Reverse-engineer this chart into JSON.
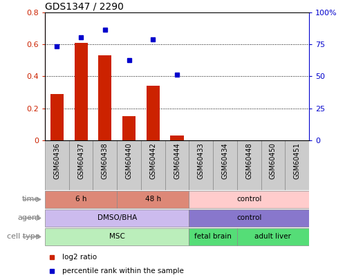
{
  "title": "GDS1347 / 2290",
  "samples": [
    "GSM60436",
    "GSM60437",
    "GSM60438",
    "GSM60440",
    "GSM60442",
    "GSM60444",
    "GSM60433",
    "GSM60434",
    "GSM60448",
    "GSM60450",
    "GSM60451"
  ],
  "log2_ratio": [
    0.29,
    0.61,
    0.53,
    0.15,
    0.34,
    0.03,
    0.0,
    0.0,
    0.0,
    0.0,
    0.0
  ],
  "percentile_rank": [
    0.735,
    0.805,
    0.865,
    0.625,
    0.79,
    0.515,
    null,
    null,
    null,
    null,
    null
  ],
  "bar_color": "#cc2200",
  "dot_color": "#0000cc",
  "ylim_left": [
    0,
    0.8
  ],
  "ylim_right": [
    0,
    1.0
  ],
  "yticks_left": [
    0,
    0.2,
    0.4,
    0.6,
    0.8
  ],
  "yticks_right_vals": [
    0,
    0.25,
    0.5,
    0.75,
    1.0
  ],
  "yticks_right_labels": [
    "0",
    "25",
    "50",
    "75",
    "100%"
  ],
  "yticks_left_labels": [
    "0",
    "0.2",
    "0.4",
    "0.6",
    "0.8"
  ],
  "rows": [
    {
      "label": "cell type",
      "segments": [
        {
          "text": "MSC",
          "start": 0,
          "end": 6,
          "color": "#bbeebb",
          "border": "#888888"
        },
        {
          "text": "fetal brain",
          "start": 6,
          "end": 8,
          "color": "#55dd77",
          "border": "#888888"
        },
        {
          "text": "adult liver",
          "start": 8,
          "end": 11,
          "color": "#55dd77",
          "border": "#888888"
        }
      ]
    },
    {
      "label": "agent",
      "segments": [
        {
          "text": "DMSO/BHA",
          "start": 0,
          "end": 6,
          "color": "#ccbbee",
          "border": "#888888"
        },
        {
          "text": "control",
          "start": 6,
          "end": 11,
          "color": "#8877cc",
          "border": "#888888"
        }
      ]
    },
    {
      "label": "time",
      "segments": [
        {
          "text": "6 h",
          "start": 0,
          "end": 3,
          "color": "#dd8877",
          "border": "#888888"
        },
        {
          "text": "48 h",
          "start": 3,
          "end": 6,
          "color": "#dd8877",
          "border": "#888888"
        },
        {
          "text": "control",
          "start": 6,
          "end": 11,
          "color": "#ffcccc",
          "border": "#888888"
        }
      ]
    }
  ],
  "legend_items": [
    {
      "label": "log2 ratio",
      "color": "#cc2200",
      "marker": "s"
    },
    {
      "label": "percentile rank within the sample",
      "color": "#0000cc",
      "marker": "s"
    }
  ],
  "grid_color": "black",
  "tick_label_color_left": "#cc2200",
  "tick_label_color_right": "#0000cc",
  "row_label_color": "#777777",
  "background_color": "#ffffff",
  "xticklabel_bg": "#cccccc",
  "border_color": "#888888"
}
